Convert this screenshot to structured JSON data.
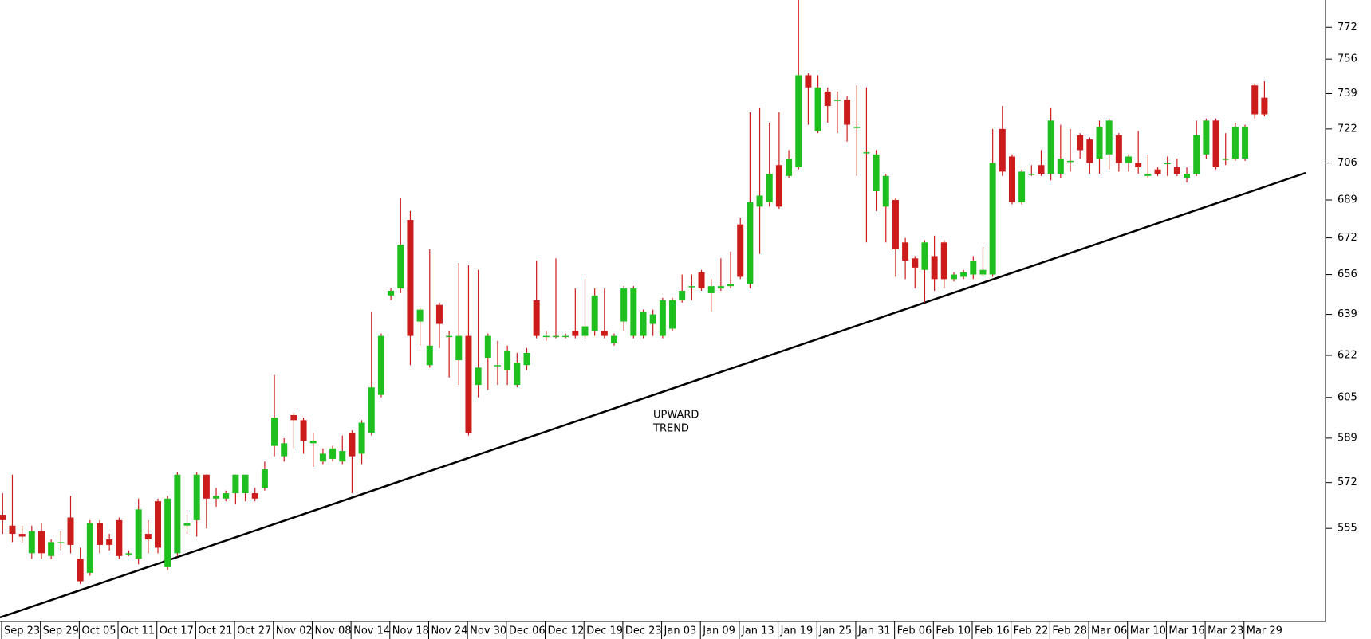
{
  "chart_data": {
    "type": "candlestick",
    "categories": [
      "Sep 23",
      null,
      null,
      null,
      "Sep 29",
      null,
      null,
      null,
      "Oct 05",
      null,
      null,
      null,
      "Oct 11",
      null,
      null,
      null,
      "Oct 17",
      null,
      null,
      null,
      "Oct 21",
      null,
      null,
      null,
      "Oct 27",
      null,
      null,
      null,
      "Nov 02",
      null,
      null,
      null,
      "Nov 08",
      null,
      null,
      null,
      "Nov 14",
      null,
      null,
      null,
      "Nov 18",
      null,
      null,
      null,
      "Nov 24",
      null,
      null,
      null,
      "Nov 30",
      null,
      null,
      null,
      "Dec 06",
      null,
      null,
      null,
      "Dec 12",
      null,
      null,
      null,
      "Dec 19",
      null,
      null,
      null,
      "Dec 23",
      null,
      null,
      null,
      "Jan 03",
      null,
      null,
      null,
      "Jan 09",
      null,
      null,
      null,
      "Jan 13",
      null,
      null,
      null,
      "Jan 19",
      null,
      null,
      null,
      "Jan 25",
      null,
      null,
      null,
      "Jan 31",
      null,
      null,
      null,
      "Feb 06",
      null,
      null,
      null,
      "Feb 10",
      null,
      null,
      null,
      "Feb 16",
      null,
      null,
      null,
      "Feb 22",
      null,
      null,
      null,
      "Feb 28",
      null,
      null,
      null,
      "Mar 06",
      null,
      null,
      null,
      "Mar 10",
      null,
      null,
      null,
      "Mar 16",
      null,
      null,
      null,
      "Mar 23",
      null,
      null,
      null,
      "Mar 29",
      null,
      null
    ],
    "open": [
      560,
      556,
      553,
      546,
      554,
      545,
      550,
      559,
      544,
      539,
      557,
      551,
      558,
      546,
      544,
      553,
      565,
      541,
      546,
      556,
      558,
      575,
      566,
      566,
      568,
      568,
      568,
      570,
      586,
      582,
      598,
      596,
      587,
      580,
      581,
      580,
      591,
      583,
      591,
      606,
      647,
      650,
      680,
      636,
      618,
      643,
      630,
      620,
      630,
      610,
      621,
      618,
      616,
      610,
      618,
      645,
      630,
      630,
      630,
      632,
      630,
      632,
      632,
      627,
      636,
      630,
      630,
      635,
      630,
      633,
      645,
      651,
      657,
      648,
      650,
      651,
      678,
      652,
      686,
      688,
      705,
      700,
      704,
      748,
      721,
      740,
      736,
      736,
      723,
      711,
      693,
      686,
      689,
      670,
      663,
      658,
      664,
      670,
      654,
      655,
      656,
      656,
      656,
      722,
      709,
      688,
      701,
      705,
      701,
      701,
      707,
      719,
      717,
      708,
      710,
      719,
      706,
      706,
      700,
      703,
      706,
      704,
      699,
      701,
      710,
      726,
      708,
      708,
      708,
      743,
      737
    ],
    "high": [
      568,
      575,
      556,
      556,
      557,
      551,
      554,
      567,
      548,
      558,
      558,
      553,
      559,
      547,
      566,
      558,
      566,
      567,
      576,
      560,
      576,
      575,
      570,
      569,
      575,
      575,
      570,
      580,
      614,
      589,
      599,
      597,
      591,
      585,
      586,
      590,
      592,
      596,
      640,
      631,
      650,
      690,
      684,
      642,
      667,
      644,
      632,
      661,
      660,
      658,
      631,
      628,
      626,
      623,
      625,
      662,
      632,
      663,
      631,
      650,
      654,
      650,
      650,
      631,
      651,
      651,
      641,
      641,
      646,
      646,
      656,
      656,
      658,
      654,
      663,
      666,
      681,
      730,
      732,
      725,
      730,
      712,
      786,
      749,
      748,
      742,
      740,
      738,
      743,
      742,
      712,
      701,
      690,
      672,
      664,
      671,
      673,
      671,
      657,
      658,
      664,
      668,
      722,
      733,
      710,
      703,
      705,
      712,
      732,
      724,
      722,
      720,
      718,
      726,
      727,
      720,
      710,
      721,
      710,
      704,
      709,
      708,
      704,
      726,
      727,
      727,
      720,
      725,
      724,
      744,
      745
    ],
    "low": [
      553,
      550,
      550,
      544,
      544,
      544,
      547,
      546,
      535,
      538,
      546,
      547,
      544,
      545,
      542,
      546,
      546,
      540,
      545,
      553,
      552,
      555,
      563,
      565,
      564,
      565,
      565,
      569,
      582,
      580,
      585,
      583,
      578,
      579,
      580,
      579,
      568,
      579,
      590,
      605,
      645,
      648,
      618,
      626,
      617,
      625,
      613,
      610,
      590,
      605,
      608,
      610,
      610,
      609,
      616,
      629,
      628,
      629,
      629,
      629,
      629,
      630,
      629,
      626,
      632,
      629,
      629,
      630,
      629,
      632,
      644,
      645,
      649,
      640,
      649,
      650,
      654,
      650,
      665,
      686,
      685,
      699,
      703,
      724,
      720,
      725,
      720,
      716,
      700,
      670,
      684,
      670,
      655,
      654,
      650,
      644,
      649,
      650,
      653,
      654,
      654,
      655,
      655,
      700,
      687,
      687,
      700,
      700,
      698,
      699,
      702,
      708,
      701,
      701,
      703,
      702,
      702,
      701,
      699,
      700,
      700,
      700,
      697,
      700,
      708,
      703,
      705,
      707,
      707,
      727,
      728
    ],
    "close": [
      558,
      553,
      552,
      554,
      546,
      550,
      550,
      549,
      536,
      557,
      549,
      549,
      545,
      546,
      562,
      551,
      548,
      566,
      575,
      557,
      575,
      566,
      567,
      568,
      575,
      575,
      566,
      577,
      597,
      587,
      596,
      588,
      588,
      583,
      585,
      584,
      582,
      595,
      609,
      630,
      649,
      669,
      630,
      641,
      626,
      635,
      630,
      630,
      591,
      617,
      630,
      618,
      624,
      619,
      623,
      630,
      630,
      630,
      630,
      630,
      634,
      647,
      630,
      630,
      650,
      650,
      640,
      639,
      645,
      645,
      649,
      651,
      650,
      651,
      651,
      652,
      655,
      688,
      691,
      701,
      686,
      708,
      748,
      742,
      742,
      733,
      736,
      724,
      723,
      711,
      710,
      700,
      667,
      662,
      659,
      670,
      654,
      654,
      656,
      657,
      662,
      658,
      706,
      702,
      688,
      702,
      701,
      701,
      726,
      708,
      707,
      712,
      706,
      723,
      726,
      706,
      709,
      704,
      701,
      701,
      706,
      701,
      701,
      719,
      726,
      704,
      708,
      723,
      723,
      729,
      729
    ],
    "up_color": "#1fbf1f",
    "down_color": "#cc1b1b",
    "wick_color": "#cc1b1b",
    "ylim": [
      522,
      786
    ],
    "yticks": [
      772,
      756,
      739,
      722,
      706,
      689,
      672,
      656,
      639,
      622,
      605,
      589,
      572,
      555
    ],
    "log_scale": true,
    "annotation": [
      "UPWARD",
      "TREND"
    ],
    "annotation_color": "#2a2ae0"
  }
}
